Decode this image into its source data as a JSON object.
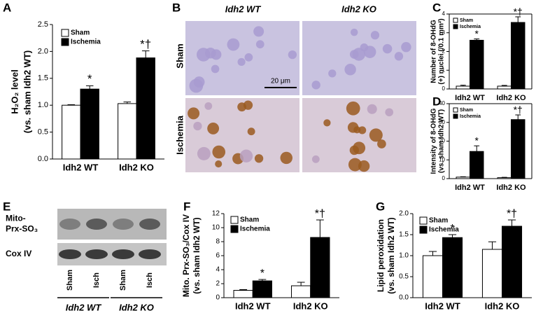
{
  "chart_data": [
    {
      "type": "bar",
      "label": "A",
      "ylabel": [
        "H₂O₂ level",
        "(vs. sham Idh2 WT)"
      ],
      "categories": [
        "Idh2 WT",
        "Idh2 KO"
      ],
      "series": [
        {
          "name": "Sham",
          "color": "#ffffff",
          "values": [
            1.0,
            1.03
          ],
          "errors": [
            0.01,
            0.03
          ],
          "annotations": [
            null,
            null
          ]
        },
        {
          "name": "Ischemia",
          "color": "#000000",
          "values": [
            1.3,
            1.88
          ],
          "errors": [
            0.06,
            0.13
          ],
          "annotations": [
            "*",
            "*†"
          ]
        }
      ],
      "ylim": [
        0,
        2.5
      ],
      "yticks": [
        {
          "value": 0,
          "label": "0.0"
        },
        {
          "value": 0.5,
          "label": "0.5"
        },
        {
          "value": 1,
          "label": "1.0"
        },
        {
          "value": 1.5,
          "label": "1.5"
        },
        {
          "value": 2,
          "label": "2.0"
        },
        {
          "value": 2.5,
          "label": "2.5"
        }
      ]
    },
    {
      "type": "bar",
      "label": "C",
      "ylabel": [
        "Number of 8-OHdG",
        "(+) nuclei (/0.1 mm²)"
      ],
      "categories": [
        "Idh2 WT",
        "Idh2 KO"
      ],
      "series": [
        {
          "name": "Sham",
          "color": "#ffffff",
          "values": [
            0.15,
            0.15
          ],
          "errors": [
            0.05,
            0.04
          ],
          "annotations": [
            null,
            null
          ]
        },
        {
          "name": "Ischemia",
          "color": "#000000",
          "values": [
            2.6,
            3.55
          ],
          "errors": [
            0.07,
            0.3
          ],
          "annotations": [
            "*",
            "*†"
          ]
        }
      ],
      "ylim": [
        0,
        4
      ],
      "yticks": [
        0,
        1,
        2,
        3,
        4
      ]
    },
    {
      "type": "bar",
      "label": "D",
      "ylabel": [
        "Intensity of 8-OHdG",
        "(vs. sham Idh2 WT)"
      ],
      "categories": [
        "Idh2 WT",
        "Idh2 KO"
      ],
      "series": [
        {
          "name": "Sham",
          "color": "#ffffff",
          "values": [
            0.8,
            0.5
          ],
          "errors": [
            0.2,
            0.2
          ],
          "annotations": [
            null,
            null
          ]
        },
        {
          "name": "Ischemia",
          "color": "#000000",
          "values": [
            14.5,
            31.5
          ],
          "errors": [
            3,
            2.5
          ],
          "annotations": [
            "*",
            "*†"
          ]
        }
      ],
      "ylim": [
        0,
        40
      ],
      "yticks": [
        0,
        10,
        20,
        30,
        40
      ]
    },
    {
      "type": "bar",
      "label": "F",
      "ylabel": [
        "Mito. Prx-SO₃/Cox IV",
        "(vs. sham Idh2 WT)"
      ],
      "categories": [
        "Idh2 WT",
        "Idh2 KO"
      ],
      "series": [
        {
          "name": "Sham",
          "color": "#ffffff",
          "values": [
            1.05,
            1.7
          ],
          "errors": [
            0.1,
            0.5
          ],
          "annotations": [
            null,
            null
          ]
        },
        {
          "name": "Ischemia",
          "color": "#000000",
          "values": [
            2.4,
            8.6
          ],
          "errors": [
            0.2,
            2.5
          ],
          "annotations": [
            "*",
            "*†"
          ]
        }
      ],
      "ylim": [
        0,
        12
      ],
      "yticks": [
        0,
        2,
        4,
        6,
        8,
        10,
        12
      ]
    },
    {
      "type": "bar",
      "label": "G",
      "ylabel": [
        "Lipid peroxidation",
        "(vs. sham Idh2 WT)"
      ],
      "categories": [
        "Idh2 WT",
        "Idh2 KO"
      ],
      "series": [
        {
          "name": "Sham",
          "color": "#ffffff",
          "values": [
            1.0,
            1.15
          ],
          "errors": [
            0.1,
            0.18
          ],
          "annotations": [
            null,
            null
          ]
        },
        {
          "name": "Ischemia",
          "color": "#000000",
          "values": [
            1.43,
            1.7
          ],
          "errors": [
            0.07,
            0.15
          ],
          "annotations": [
            "*",
            "*†"
          ]
        }
      ],
      "ylim": [
        0,
        2
      ],
      "yticks": [
        {
          "value": 0,
          "label": "0.0"
        },
        {
          "value": 0.5,
          "label": "0.5"
        },
        {
          "value": 1,
          "label": "1.0"
        },
        {
          "value": 1.5,
          "label": "1.5"
        },
        {
          "value": 2,
          "label": "2.0"
        }
      ]
    }
  ],
  "micrograph": {
    "label": "B",
    "columns": [
      "Idh2 WT",
      "Idh2 KO"
    ],
    "rows": [
      "Sham",
      "Ischemia"
    ],
    "scale_bar": "20 μm"
  },
  "blot": {
    "label": "E",
    "rows": [
      [
        "Mito-",
        "Prx-SO₃"
      ],
      [
        "Cox IV"
      ]
    ],
    "lanes": [
      "Sham",
      "Isch",
      "Sham",
      "Isch"
    ],
    "groups": [
      "Idh2 WT",
      "Idh2 KO"
    ]
  }
}
